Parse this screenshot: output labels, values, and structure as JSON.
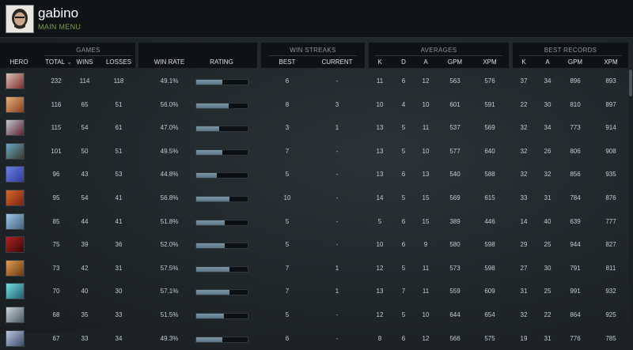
{
  "user": {
    "name": "gabino",
    "menu_label": "MAIN MENU"
  },
  "groups": {
    "games": "GAMES",
    "win_streaks": "WIN STREAKS",
    "averages": "AVERAGES",
    "best_records": "BEST RECORDS"
  },
  "columns": {
    "hero": "HERO",
    "total": "TOTAL",
    "wins": "WINS",
    "losses": "LOSSES",
    "win_rate": "WIN RATE",
    "rating": "RATING",
    "best": "BEST",
    "current": "CURRENT",
    "avg_k": "K",
    "avg_d": "D",
    "avg_a": "A",
    "avg_gpm": "GPM",
    "avg_xpm": "XPM",
    "rec_k": "K",
    "rec_a": "A",
    "rec_gpm": "GPM",
    "rec_xpm": "XPM",
    "sort_icon": "⌄"
  },
  "colors": {
    "header_bg": "#0e1215",
    "accent_green": "#7ea04a",
    "rating_bar": "#6d8797"
  },
  "rows": [
    {
      "hero_icon": "hero-portrait-1",
      "hero_color": [
        "#d8c2b4",
        "#7a2a2a"
      ],
      "total": "232",
      "wins": "114",
      "losses": "118",
      "win_rate": "49.1%",
      "rating": 0.5,
      "best": "6",
      "current": "-",
      "k": "11",
      "d": "6",
      "a": "12",
      "gpm": "563",
      "xpm": "576",
      "rk": "37",
      "ra": "34",
      "rgpm": "896",
      "rxpm": "893"
    },
    {
      "hero_icon": "hero-portrait-2",
      "hero_color": [
        "#e3b07a",
        "#8a3d1b"
      ],
      "total": "116",
      "wins": "65",
      "losses": "51",
      "win_rate": "56.0%",
      "rating": 0.63,
      "best": "8",
      "current": "3",
      "k": "10",
      "d": "4",
      "a": "10",
      "gpm": "601",
      "xpm": "591",
      "rk": "22",
      "ra": "30",
      "rgpm": "810",
      "rxpm": "897"
    },
    {
      "hero_icon": "hero-portrait-3",
      "hero_color": [
        "#c2c7cf",
        "#5a1f2c"
      ],
      "total": "115",
      "wins": "54",
      "losses": "61",
      "win_rate": "47.0%",
      "rating": 0.44,
      "best": "3",
      "current": "1",
      "k": "13",
      "d": "5",
      "a": "11",
      "gpm": "537",
      "xpm": "569",
      "rk": "32",
      "ra": "34",
      "rgpm": "773",
      "rxpm": "914"
    },
    {
      "hero_icon": "hero-portrait-4",
      "hero_color": [
        "#6aa6c4",
        "#3a3a2a"
      ],
      "total": "101",
      "wins": "50",
      "losses": "51",
      "win_rate": "49.5%",
      "rating": 0.5,
      "best": "7",
      "current": "-",
      "k": "13",
      "d": "5",
      "a": "10",
      "gpm": "577",
      "xpm": "640",
      "rk": "32",
      "ra": "26",
      "rgpm": "806",
      "rxpm": "908"
    },
    {
      "hero_icon": "hero-portrait-5",
      "hero_color": [
        "#6c7fe0",
        "#2e3a9a"
      ],
      "total": "96",
      "wins": "43",
      "losses": "53",
      "win_rate": "44.8%",
      "rating": 0.4,
      "best": "5",
      "current": "-",
      "k": "13",
      "d": "6",
      "a": "13",
      "gpm": "540",
      "xpm": "588",
      "rk": "32",
      "ra": "32",
      "rgpm": "856",
      "rxpm": "935"
    },
    {
      "hero_icon": "hero-portrait-6",
      "hero_color": [
        "#d46a2c",
        "#7a2010"
      ],
      "total": "95",
      "wins": "54",
      "losses": "41",
      "win_rate": "56.8%",
      "rating": 0.64,
      "best": "10",
      "current": "-",
      "k": "14",
      "d": "5",
      "a": "15",
      "gpm": "569",
      "xpm": "615",
      "rk": "33",
      "ra": "31",
      "rgpm": "784",
      "rxpm": "876"
    },
    {
      "hero_icon": "hero-portrait-7",
      "hero_color": [
        "#9fc4e6",
        "#40627f"
      ],
      "total": "85",
      "wins": "44",
      "losses": "41",
      "win_rate": "51.8%",
      "rating": 0.55,
      "best": "5",
      "current": "-",
      "k": "5",
      "d": "6",
      "a": "15",
      "gpm": "389",
      "xpm": "446",
      "rk": "14",
      "ra": "40",
      "rgpm": "639",
      "rxpm": "777"
    },
    {
      "hero_icon": "hero-portrait-8",
      "hero_color": [
        "#b02222",
        "#3a0808"
      ],
      "total": "75",
      "wins": "39",
      "losses": "36",
      "win_rate": "52.0%",
      "rating": 0.55,
      "best": "5",
      "current": "-",
      "k": "10",
      "d": "6",
      "a": "9",
      "gpm": "580",
      "xpm": "598",
      "rk": "29",
      "ra": "25",
      "rgpm": "944",
      "rxpm": "827"
    },
    {
      "hero_icon": "hero-portrait-9",
      "hero_color": [
        "#e0a050",
        "#6a3412"
      ],
      "total": "73",
      "wins": "42",
      "losses": "31",
      "win_rate": "57.5%",
      "rating": 0.65,
      "best": "7",
      "current": "1",
      "k": "12",
      "d": "5",
      "a": "11",
      "gpm": "573",
      "xpm": "598",
      "rk": "27",
      "ra": "30",
      "rgpm": "791",
      "rxpm": "811"
    },
    {
      "hero_icon": "hero-portrait-10",
      "hero_color": [
        "#72e0e6",
        "#1f5a66"
      ],
      "total": "70",
      "wins": "40",
      "losses": "30",
      "win_rate": "57.1%",
      "rating": 0.65,
      "best": "7",
      "current": "1",
      "k": "13",
      "d": "7",
      "a": "11",
      "gpm": "559",
      "xpm": "609",
      "rk": "31",
      "ra": "25",
      "rgpm": "991",
      "rxpm": "932"
    },
    {
      "hero_icon": "hero-portrait-11",
      "hero_color": [
        "#c8d2d8",
        "#4a5a66"
      ],
      "total": "68",
      "wins": "35",
      "losses": "33",
      "win_rate": "51.5%",
      "rating": 0.54,
      "best": "5",
      "current": "-",
      "k": "12",
      "d": "5",
      "a": "10",
      "gpm": "644",
      "xpm": "654",
      "rk": "32",
      "ra": "22",
      "rgpm": "864",
      "rxpm": "925"
    },
    {
      "hero_icon": "hero-portrait-12",
      "hero_color": [
        "#b8c8e0",
        "#3a4a66"
      ],
      "total": "67",
      "wins": "33",
      "losses": "34",
      "win_rate": "49.3%",
      "rating": 0.5,
      "best": "6",
      "current": "-",
      "k": "8",
      "d": "6",
      "a": "12",
      "gpm": "566",
      "xpm": "575",
      "rk": "19",
      "ra": "31",
      "rgpm": "776",
      "rxpm": "785"
    }
  ]
}
